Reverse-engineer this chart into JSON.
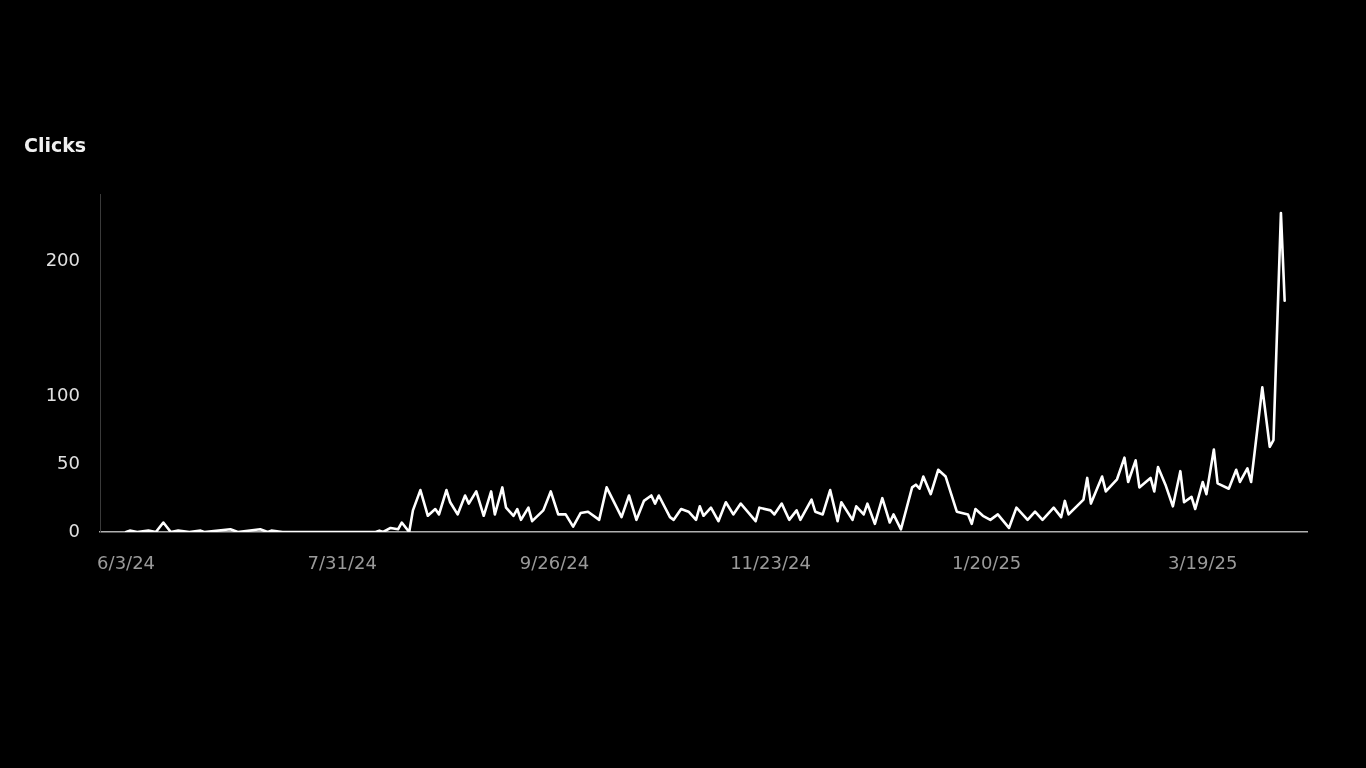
{
  "chart_data": {
    "type": "line",
    "ylabel": "Clicks",
    "x": [
      "2024-06-03",
      "2024-06-04",
      "2024-06-06",
      "2024-06-09",
      "2024-06-11",
      "2024-06-13",
      "2024-06-15",
      "2024-06-17",
      "2024-06-20",
      "2024-06-23",
      "2024-06-24",
      "2024-07-01",
      "2024-07-03",
      "2024-07-09",
      "2024-07-11",
      "2024-07-12",
      "2024-07-15",
      "2024-08-09",
      "2024-08-10",
      "2024-08-11",
      "2024-08-13",
      "2024-08-15",
      "2024-08-16",
      "2024-08-18",
      "2024-08-19",
      "2024-08-21",
      "2024-08-23",
      "2024-08-25",
      "2024-08-26",
      "2024-08-28",
      "2024-08-29",
      "2024-08-31",
      "2024-09-02",
      "2024-09-03",
      "2024-09-05",
      "2024-09-07",
      "2024-09-09",
      "2024-09-10",
      "2024-09-12",
      "2024-09-13",
      "2024-09-15",
      "2024-09-16",
      "2024-09-17",
      "2024-09-19",
      "2024-09-20",
      "2024-09-23",
      "2024-09-25",
      "2024-09-27",
      "2024-09-29",
      "2024-10-01",
      "2024-10-03",
      "2024-10-05",
      "2024-10-08",
      "2024-10-10",
      "2024-10-14",
      "2024-10-16",
      "2024-10-18",
      "2024-10-20",
      "2024-10-22",
      "2024-10-23",
      "2024-10-24",
      "2024-10-27",
      "2024-10-28",
      "2024-10-30",
      "2024-11-01",
      "2024-11-03",
      "2024-11-04",
      "2024-11-05",
      "2024-11-07",
      "2024-11-09",
      "2024-11-11",
      "2024-11-13",
      "2024-11-15",
      "2024-11-19",
      "2024-11-20",
      "2024-11-23",
      "2024-11-24",
      "2024-11-26",
      "2024-11-28",
      "2024-11-30",
      "2024-12-01",
      "2024-12-04",
      "2024-12-05",
      "2024-12-07",
      "2024-12-09",
      "2024-12-11",
      "2024-12-12",
      "2024-12-15",
      "2024-12-16",
      "2024-12-18",
      "2024-12-19",
      "2024-12-21",
      "2024-12-23",
      "2024-12-25",
      "2024-12-26",
      "2024-12-28",
      "2024-12-31",
      "2025-01-01",
      "2025-01-02",
      "2025-01-03",
      "2025-01-05",
      "2025-01-07",
      "2025-01-09",
      "2025-01-12",
      "2025-01-15",
      "2025-01-16",
      "2025-01-17",
      "2025-01-19",
      "2025-01-21",
      "2025-01-23",
      "2025-01-26",
      "2025-01-28",
      "2025-01-31",
      "2025-02-02",
      "2025-02-04",
      "2025-02-07",
      "2025-02-09",
      "2025-02-10",
      "2025-02-11",
      "2025-02-15",
      "2025-02-16",
      "2025-02-17",
      "2025-02-20",
      "2025-02-21",
      "2025-02-24",
      "2025-02-26",
      "2025-02-27",
      "2025-03-01",
      "2025-03-02",
      "2025-03-05",
      "2025-03-06",
      "2025-03-07",
      "2025-03-09",
      "2025-03-11",
      "2025-03-13",
      "2025-03-14",
      "2025-03-16",
      "2025-03-17",
      "2025-03-19",
      "2025-03-20",
      "2025-03-22",
      "2025-03-23",
      "2025-03-26",
      "2025-03-28",
      "2025-03-29",
      "2025-03-31",
      "2025-04-01",
      "2025-04-04",
      "2025-04-06",
      "2025-04-07",
      "2025-04-09",
      "2025-04-10"
    ],
    "series": [
      {
        "color": "#ffffff",
        "values": [
          0,
          1,
          0,
          1,
          0,
          7,
          0,
          1,
          0,
          1,
          0,
          2,
          0,
          2,
          0,
          1,
          0,
          0,
          1,
          0,
          3,
          2,
          7,
          0,
          16,
          31,
          12,
          17,
          13,
          31,
          22,
          13,
          27,
          21,
          30,
          12,
          30,
          13,
          33,
          18,
          12,
          17,
          9,
          18,
          8,
          16,
          30,
          13,
          13,
          4,
          14,
          15,
          9,
          33,
          11,
          27,
          9,
          23,
          27,
          21,
          27,
          11,
          9,
          17,
          15,
          9,
          19,
          12,
          18,
          8,
          22,
          13,
          21,
          8,
          18,
          16,
          13,
          21,
          9,
          16,
          9,
          24,
          15,
          13,
          31,
          8,
          22,
          9,
          19,
          13,
          21,
          6,
          25,
          7,
          13,
          2,
          33,
          35,
          32,
          41,
          28,
          46,
          41,
          15,
          13,
          6,
          17,
          12,
          9,
          13,
          3,
          18,
          9,
          15,
          9,
          18,
          11,
          23,
          13,
          24,
          40,
          21,
          41,
          30,
          39,
          55,
          37,
          53,
          33,
          40,
          30,
          48,
          35,
          19,
          45,
          22,
          26,
          17,
          37,
          28,
          61,
          36,
          32,
          46,
          37,
          47,
          37,
          107,
          63,
          68,
          236,
          171
        ]
      }
    ],
    "xlim": [
      "2024-05-27",
      "2025-04-16"
    ],
    "xticks": [
      {
        "value": "2024-06-03",
        "label": "6/3/24"
      },
      {
        "value": "2024-07-31",
        "label": "7/31/24"
      },
      {
        "value": "2024-09-26",
        "label": "9/26/24"
      },
      {
        "value": "2024-11-23",
        "label": "11/23/24"
      },
      {
        "value": "2025-01-20",
        "label": "1/20/25"
      },
      {
        "value": "2025-03-19",
        "label": "3/19/25"
      }
    ],
    "ylim": [
      0,
      250
    ],
    "yticks": [
      0,
      50,
      100,
      200
    ],
    "grid": false,
    "legend": false
  }
}
